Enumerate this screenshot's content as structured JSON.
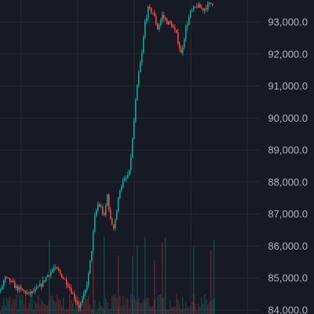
{
  "chart_data": {
    "type": "candlestick",
    "ylim": [
      83950,
      93650
    ],
    "y_ticks": [
      84000,
      85000,
      86000,
      87000,
      88000,
      89000,
      90000,
      91000,
      92000,
      93000
    ],
    "y_tick_labels": [
      "84,000.0",
      "85,000.0",
      "86,000.0",
      "87,000.0",
      "88,000.0",
      "89,000.0",
      "90,000.0",
      "91,000.0",
      "92,000.0",
      "93,000.0"
    ],
    "price_path_anchors": [
      [
        0,
        84600
      ],
      [
        5,
        85000
      ],
      [
        12,
        84900
      ],
      [
        20,
        84700
      ],
      [
        28,
        84600
      ],
      [
        36,
        84500
      ],
      [
        44,
        84600
      ],
      [
        52,
        84800
      ],
      [
        60,
        85100
      ],
      [
        68,
        85300
      ],
      [
        74,
        85200
      ],
      [
        80,
        85000
      ],
      [
        86,
        84800
      ],
      [
        92,
        84500
      ],
      [
        96,
        84300
      ],
      [
        100,
        84100
      ],
      [
        104,
        84300
      ],
      [
        108,
        84600
      ],
      [
        112,
        85100
      ],
      [
        116,
        85900
      ],
      [
        120,
        86900
      ],
      [
        124,
        87300
      ],
      [
        128,
        87200
      ],
      [
        132,
        86900
      ],
      [
        136,
        87600
      ],
      [
        140,
        86800
      ],
      [
        144,
        86600
      ],
      [
        148,
        87100
      ],
      [
        152,
        87800
      ],
      [
        156,
        88000
      ],
      [
        160,
        88100
      ],
      [
        164,
        88300
      ],
      [
        168,
        89300
      ],
      [
        172,
        90500
      ],
      [
        176,
        91400
      ],
      [
        180,
        92000
      ],
      [
        184,
        93000
      ],
      [
        188,
        93400
      ],
      [
        194,
        93300
      ],
      [
        200,
        92800
      ],
      [
        206,
        93200
      ],
      [
        212,
        93000
      ],
      [
        218,
        92900
      ],
      [
        224,
        92600
      ],
      [
        230,
        92000
      ],
      [
        236,
        92800
      ],
      [
        242,
        93300
      ],
      [
        250,
        93500
      ],
      [
        258,
        93400
      ],
      [
        266,
        93550
      ],
      [
        270,
        93600
      ]
    ],
    "volume_spike_positions": [
      62,
      118,
      132,
      150,
      168,
      174,
      184,
      196,
      206,
      210,
      246,
      268,
      272
    ]
  },
  "colors": {
    "background": "#161a25",
    "grid": "#242936",
    "up": "#26a69a",
    "down": "#ef5350",
    "tick_text": "#b2b5be"
  }
}
